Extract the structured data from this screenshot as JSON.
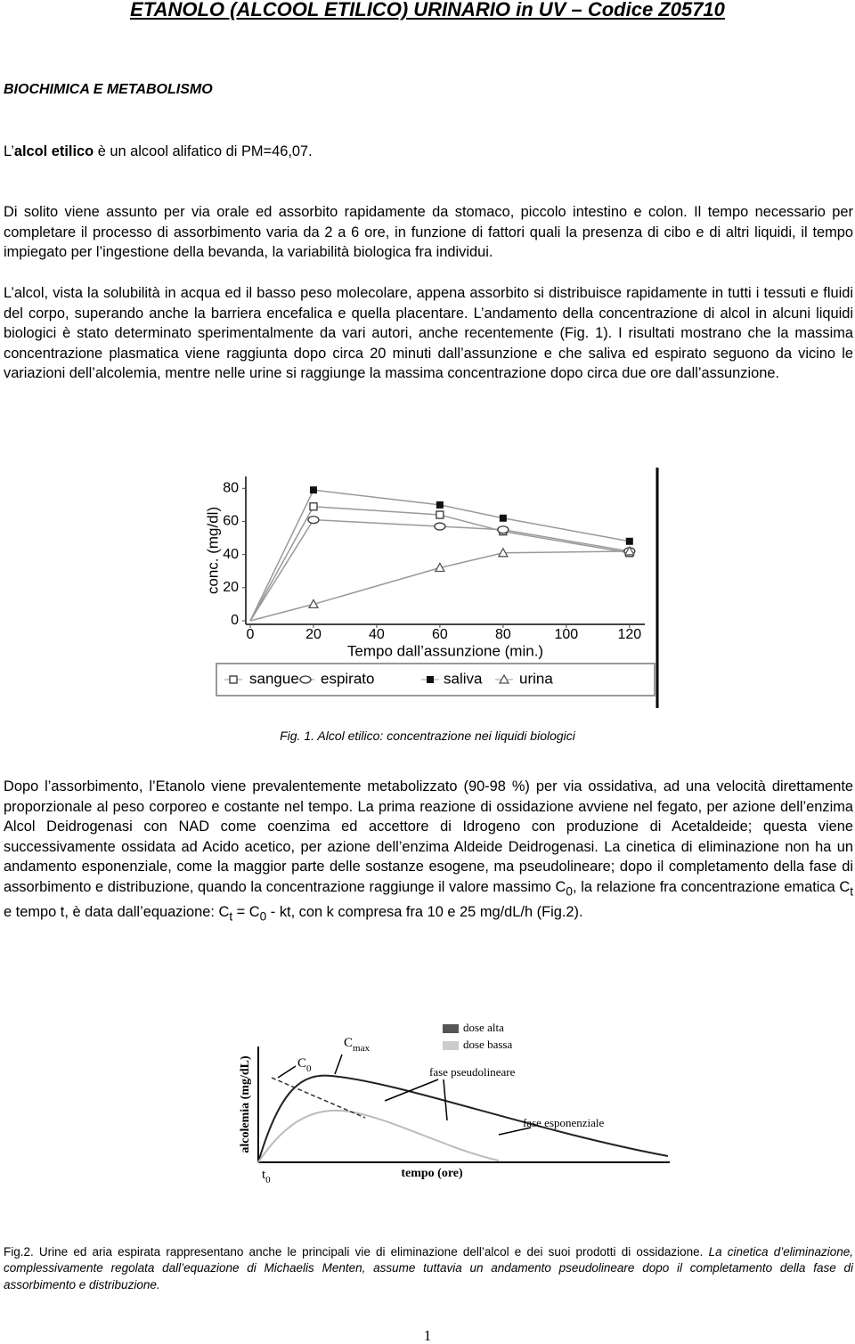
{
  "header": {
    "title": "ETANOLO (ALCOOL ETILICO) URINARIO  in UV – Codice Z05710"
  },
  "section": "BIOCHIMICA E METABOLISMO",
  "intro": [
    "L’",
    "alcol etilico",
    " è un alcool alifatico di PM=46,07."
  ],
  "paragraphs": [
    "Di solito viene assunto per via orale ed assorbito rapidamente da stomaco, piccolo intestino e colon. Il tempo necessario per completare il processo di assorbimento varia da 2 a 6 ore, in funzione di fattori quali la presenza di cibo e di altri liquidi, il tempo impiegato per l’ingestione della bevanda, la variabilità biologica fra individui.",
    "L’alcol, vista la solubilità in acqua ed il basso peso molecolare, appena assorbito si distribuisce rapidamente in tutti i tessuti e fluidi del corpo, superando anche la barriera encefalica e quella placentare. L’andamento della concentrazione di alcol in alcuni liquidi biologici è stato determinato sperimentalmente da vari autori, anche recentemente (Fig. 1). I risultati mostrano che la massima concentrazione plasmatica viene raggiunta dopo circa 20 minuti dall’assunzione e che saliva ed espirato seguono da vicino le variazioni dell’alcolemia, mentre nelle urine si raggiunge la massima concentrazione dopo circa due ore dall’assunzione."
  ],
  "chart_data": {
    "type": "line",
    "x_label": "Tempo dall’assunzione (min.)",
    "y_label": "conc. (mg/dl)",
    "x": [
      0,
      20,
      60,
      80,
      120
    ],
    "series": [
      {
        "name": "sangue",
        "color": "#333333",
        "marker": "square-open",
        "values": [
          0,
          69,
          64,
          54,
          41
        ]
      },
      {
        "name": "espirato",
        "color": "#333333",
        "marker": "circle-open",
        "values": [
          0,
          61,
          57,
          55,
          42
        ]
      },
      {
        "name": "saliva",
        "color": "#111111",
        "marker": "square-filled",
        "values": [
          0,
          79,
          70,
          62,
          48
        ]
      },
      {
        "name": "urina",
        "color": "#555555",
        "marker": "triangle-open",
        "values": [
          0,
          10,
          32,
          41,
          42
        ]
      }
    ],
    "xlim": [
      0,
      124
    ],
    "ylim": [
      0,
      85
    ],
    "xticks": [
      0,
      20,
      40,
      60,
      80,
      100,
      120
    ],
    "yticks": [
      0,
      20,
      40,
      60,
      80
    ]
  },
  "figure1_caption": "Fig. 1. Alcol etilico: concentrazione nei liquidi biologici",
  "paragraph3": [
    "Dopo l’assorbimento, l’Etanolo viene prevalentemente metabolizzato (90-98 %) per via ossidativa, ad una velocità direttamente proporzionale al peso corporeo e costante nel tempo. La prima reazione di ossidazione avviene nel fegato, per azione dell’enzima Alcol Deidrogenasi con NAD come coenzima ed accettore di Idrogeno con produzione di Acetaldeide; questa viene successivamente ossidata ad Acido acetico, per azione dell’enzima Aldeide Deidrogenasi. La cinetica di eliminazione non ha un andamento esponenziale, come la maggior parte delle sostanze esogene, ma pseudolineare; dopo il completamento della fase di assorbimento e distribuzione, quando la concentrazione raggiunge il valore massimo C",
    "0",
    ", la relazione fra concentrazione ematica C",
    "t",
    " e tempo t, è data dall’equazione: C",
    "t",
    " = C",
    "0",
    " - kt, con k compresa fra 10 e 25 mg/dL/h (Fig.2)."
  ],
  "figure2": {
    "legend": [
      "dose alta",
      "dose bassa"
    ],
    "y_label": "alcolemia (mg/dL)",
    "x_label": "tempo (ore)",
    "origin": [
      "t",
      "0"
    ],
    "cmax": [
      "C",
      "max"
    ],
    "c0": [
      "C",
      "0"
    ],
    "phases": [
      "fase pseudolineare",
      "fase esponenziale"
    ]
  },
  "figure2_caption": [
    "Fig.2. Urine ed aria espirata rappresentano anche le principali vie di eliminazione dell’alcol e dei suoi prodotti di ossidazione.",
    "La cinetica d’eliminazione, complessivamente regolata dall’equazione di Michaelis Menten, assume tuttavia un andamento pseudolineare dopo il completamento della fase di assorbimento e distribuzione."
  ],
  "page_number": "1"
}
